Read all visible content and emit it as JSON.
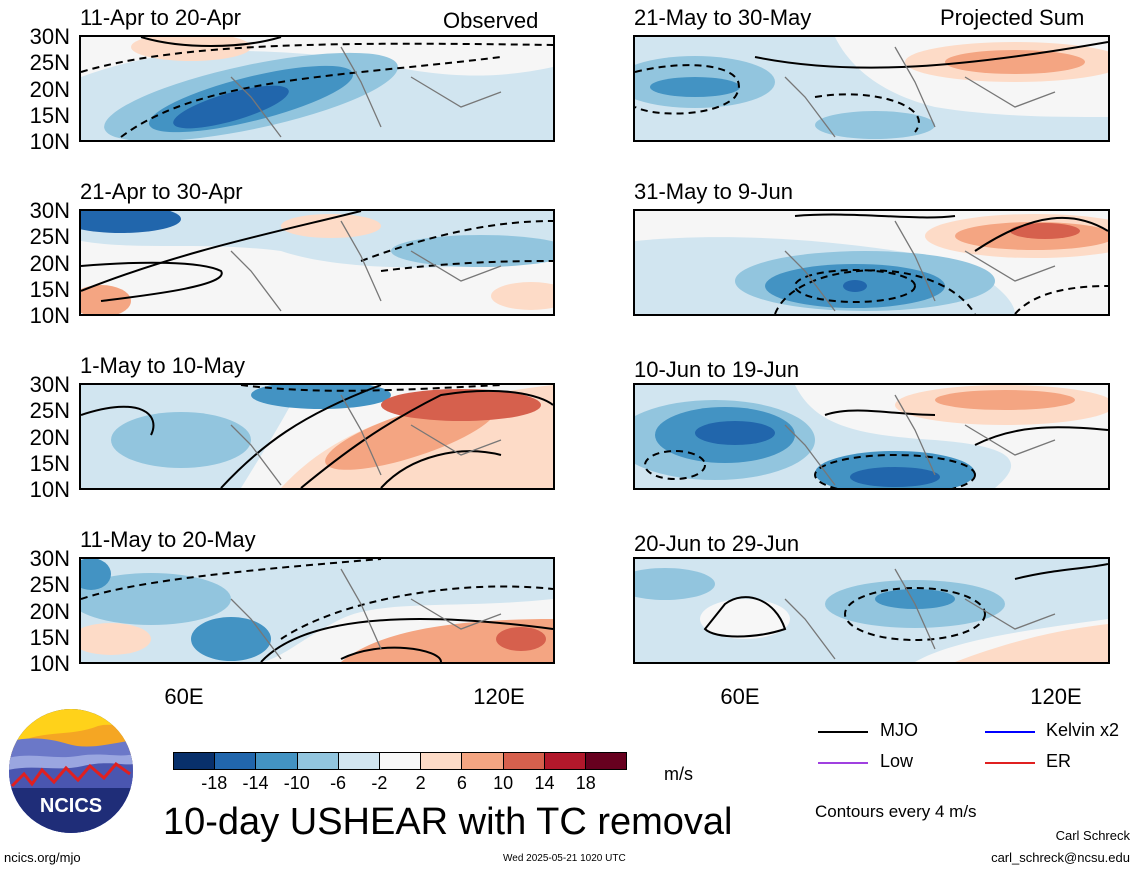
{
  "panels": [
    {
      "title": "11-Apr to 20-Apr",
      "label": "Observed"
    },
    {
      "title": "21-Apr to 30-Apr",
      "label": ""
    },
    {
      "title": "1-May to 10-May",
      "label": ""
    },
    {
      "title": "11-May to 20-May",
      "label": ""
    },
    {
      "title": "21-May to 30-May",
      "label": "Projected Sum"
    },
    {
      "title": "31-May to 9-Jun",
      "label": ""
    },
    {
      "title": "10-Jun to 19-Jun",
      "label": ""
    },
    {
      "title": "20-Jun to 29-Jun",
      "label": ""
    }
  ],
  "yticks": [
    "30N",
    "25N",
    "20N",
    "15N",
    "10N"
  ],
  "xticks": [
    "60E",
    "120E"
  ],
  "colorbar": {
    "colors": [
      "#08306b",
      "#2166ac",
      "#4393c3",
      "#92c5de",
      "#d1e5f0",
      "#f7f7f7",
      "#fddbc7",
      "#f4a582",
      "#d6604d",
      "#b2182b",
      "#67001f"
    ],
    "labels": [
      "-18",
      "-14",
      "-10",
      "-6",
      "-2",
      "2",
      "6",
      "10",
      "14",
      "18"
    ],
    "unit": "m/s"
  },
  "legend": [
    {
      "label": "MJO",
      "color": "#000000"
    },
    {
      "label": "Kelvin x2",
      "color": "#0000ff"
    },
    {
      "label": "Low",
      "color": "#a040e0"
    },
    {
      "label": "ER",
      "color": "#e02020"
    }
  ],
  "contour_note": "Contours every 4 m/s",
  "main_title": "10-day USHEAR with TC removal",
  "logo_text": "NCICS",
  "footer": {
    "url": "ncics.org/mjo",
    "timestamp": "Wed 2025-05-21 1020 UTC",
    "author": "Carl Schreck",
    "email": "carl_schreck@ncsu.edu"
  }
}
